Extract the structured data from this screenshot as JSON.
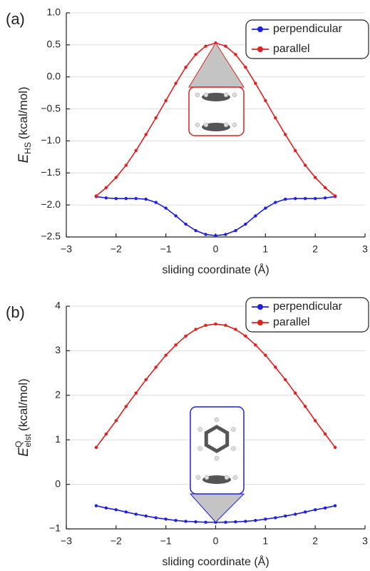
{
  "chart_data": [
    {
      "type": "line",
      "panel_label": "(a)",
      "x_label": "sliding coordinate (Å)",
      "y_label_symbol": "E",
      "y_label_sub": "HS",
      "y_label_unit": "(kcal/mol)",
      "x": [
        -2.4,
        -2.2,
        -2.0,
        -1.8,
        -1.6,
        -1.4,
        -1.2,
        -1.0,
        -0.8,
        -0.6,
        -0.4,
        -0.2,
        0,
        0.2,
        0.4,
        0.6,
        0.8,
        1.0,
        1.2,
        1.4,
        1.6,
        1.8,
        2.0,
        2.2,
        2.4
      ],
      "series": [
        {
          "name": "perpendicular",
          "color": "#1f1fe0",
          "values": [
            -1.87,
            -1.89,
            -1.9,
            -1.9,
            -1.9,
            -1.91,
            -1.96,
            -2.05,
            -2.17,
            -2.3,
            -2.4,
            -2.46,
            -2.48,
            -2.46,
            -2.4,
            -2.3,
            -2.17,
            -2.05,
            -1.96,
            -1.91,
            -1.9,
            -1.9,
            -1.9,
            -1.89,
            -1.87
          ]
        },
        {
          "name": "parallel",
          "color": "#e01f1f",
          "values": [
            -1.86,
            -1.73,
            -1.57,
            -1.38,
            -1.15,
            -0.9,
            -0.64,
            -0.37,
            -0.1,
            0.15,
            0.35,
            0.48,
            0.53,
            0.48,
            0.35,
            0.15,
            -0.1,
            -0.37,
            -0.64,
            -0.9,
            -1.15,
            -1.38,
            -1.57,
            -1.73,
            -1.86
          ]
        }
      ],
      "xlim": [
        -3,
        3
      ],
      "xticks": [
        {
          "value": -3,
          "label": "−3"
        },
        {
          "value": -2,
          "label": "−2"
        },
        {
          "value": -1,
          "label": "−1"
        },
        0,
        1,
        2,
        3
      ],
      "ylim": [
        -2.5,
        1.0
      ],
      "yticks": [
        {
          "value": -2.5,
          "label": "−2.5"
        },
        {
          "value": -2.0,
          "label": "−2.0"
        },
        {
          "value": -1.5,
          "label": "−1.5"
        },
        {
          "value": -1.0,
          "label": "−1.0"
        },
        {
          "value": -0.5,
          "label": "−0.5"
        },
        {
          "value": 0,
          "label": "0.0"
        },
        0.5,
        {
          "value": 1.0,
          "label": "1.0"
        }
      ],
      "grid": true,
      "legend": "upper right"
    },
    {
      "type": "line",
      "panel_label": "(b)",
      "x_label": "sliding coordinate (Å)",
      "y_label_symbol": "E",
      "y_label_sub": "elst",
      "y_label_sup": "Q",
      "y_label_unit": "(kcal/mol)",
      "x": [
        -2.4,
        -2.2,
        -2.0,
        -1.8,
        -1.6,
        -1.4,
        -1.2,
        -1.0,
        -0.8,
        -0.6,
        -0.4,
        -0.2,
        0,
        0.2,
        0.4,
        0.6,
        0.8,
        1.0,
        1.2,
        1.4,
        1.6,
        1.8,
        2.0,
        2.2,
        2.4
      ],
      "series": [
        {
          "name": "perpendicular",
          "color": "#1f1fe0",
          "values": [
            -0.48,
            -0.53,
            -0.57,
            -0.62,
            -0.67,
            -0.71,
            -0.75,
            -0.78,
            -0.81,
            -0.83,
            -0.84,
            -0.85,
            -0.85,
            -0.85,
            -0.84,
            -0.83,
            -0.81,
            -0.78,
            -0.75,
            -0.71,
            -0.67,
            -0.62,
            -0.57,
            -0.53,
            -0.48
          ]
        },
        {
          "name": "parallel",
          "color": "#e01f1f",
          "values": [
            0.83,
            1.13,
            1.43,
            1.75,
            2.05,
            2.35,
            2.63,
            2.9,
            3.13,
            3.33,
            3.48,
            3.57,
            3.6,
            3.57,
            3.48,
            3.33,
            3.13,
            2.9,
            2.63,
            2.35,
            2.05,
            1.75,
            1.43,
            1.13,
            0.83
          ]
        }
      ],
      "xlim": [
        -3,
        3
      ],
      "xticks": [
        {
          "value": -3,
          "label": "−3"
        },
        {
          "value": -2,
          "label": "−2"
        },
        {
          "value": -1,
          "label": "−1"
        },
        0,
        1,
        2,
        3
      ],
      "ylim": [
        -1,
        4
      ],
      "yticks": [
        {
          "value": -1,
          "label": "−1"
        },
        0,
        1,
        2,
        3,
        4
      ],
      "grid": true,
      "legend": "upper right"
    }
  ]
}
